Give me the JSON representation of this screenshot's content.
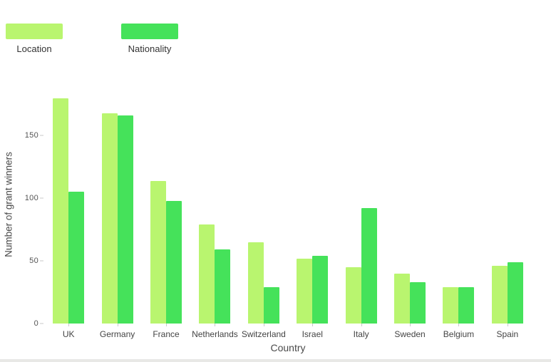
{
  "page": {
    "background": "#ffffff",
    "bottom_strip_color": "#e8e8e6"
  },
  "legend": {
    "items": [
      {
        "label": "Location",
        "color": "#b9f56f"
      },
      {
        "label": "Nationality",
        "color": "#45e25a"
      }
    ]
  },
  "chart_data": {
    "type": "bar",
    "title": "",
    "xlabel": "Country",
    "ylabel": "Number of grant winners",
    "categories": [
      "UK",
      "Germany",
      "France",
      "Netherlands",
      "Switzerland",
      "Israel",
      "Italy",
      "Sweden",
      "Belgium",
      "Spain"
    ],
    "series": [
      {
        "name": "Location",
        "color": "#b9f56f",
        "values": [
          180,
          168,
          114,
          79,
          65,
          52,
          45,
          40,
          29,
          46
        ]
      },
      {
        "name": "Nationality",
        "color": "#45e25a",
        "values": [
          105,
          166,
          98,
          59,
          29,
          54,
          92,
          33,
          29,
          49
        ]
      }
    ],
    "yticks": [
      0,
      50,
      100,
      150
    ],
    "ylim": [
      0,
      190
    ],
    "grid": false,
    "legend_position": "top-left",
    "tick_color": "#545454",
    "label_color": "#444444"
  }
}
